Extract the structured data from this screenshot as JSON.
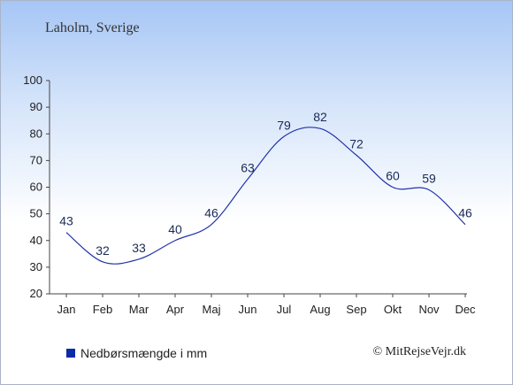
{
  "title": "Laholm, Sverige",
  "credit": "© MitRejseVejr.dk",
  "colors": {
    "line": "#2233aa",
    "legend_swatch": "#0b2aa8",
    "label": "#1a2a55"
  },
  "chart_data": {
    "type": "line",
    "categories": [
      "Jan",
      "Feb",
      "Mar",
      "Apr",
      "Maj",
      "Jun",
      "Jul",
      "Aug",
      "Sep",
      "Okt",
      "Nov",
      "Dec"
    ],
    "series": [
      {
        "name": "Nedbørsmængde i mm",
        "values": [
          43,
          32,
          33,
          40,
          46,
          63,
          79,
          82,
          72,
          60,
          59,
          46
        ]
      }
    ],
    "ylim": [
      20,
      100
    ],
    "yticks": [
      20,
      30,
      40,
      50,
      60,
      70,
      80,
      90,
      100
    ],
    "legend": "bottom-left",
    "grid": false
  }
}
